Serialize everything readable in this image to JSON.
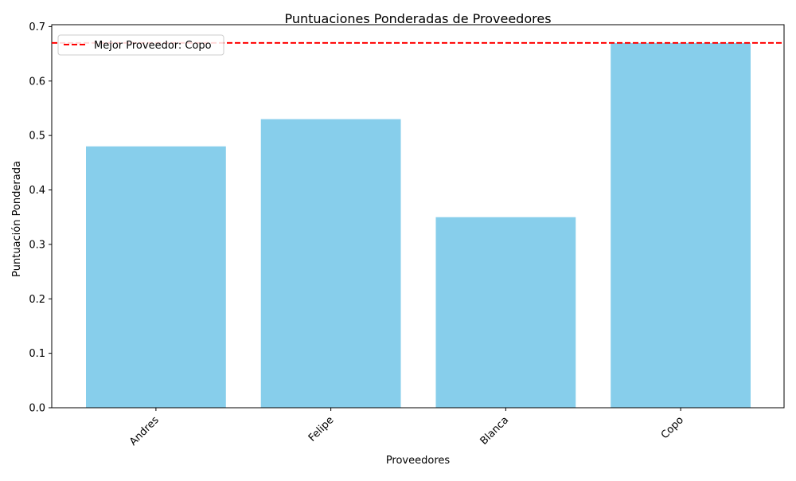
{
  "chart_data": {
    "type": "bar",
    "title": "Puntuaciones Ponderadas de Proveedores",
    "xlabel": "Proveedores",
    "ylabel": "Puntuación Ponderada",
    "categories": [
      "Andres",
      "Felipe",
      "Blanca",
      "Copo"
    ],
    "values": [
      0.48,
      0.53,
      0.35,
      0.67
    ],
    "ylim": [
      0,
      0.7035
    ],
    "yticks": [
      "0.0",
      "0.1",
      "0.2",
      "0.3",
      "0.4",
      "0.5",
      "0.6",
      "0.7"
    ],
    "bar_color": "#87CEEB",
    "reference_line": {
      "value": 0.67,
      "label": "Mejor Proveedor: Copo",
      "color": "#FF0000",
      "style": "dashed"
    },
    "legend": {
      "position": "top-left"
    },
    "grid": false,
    "xtick_rotation_deg": 45
  }
}
